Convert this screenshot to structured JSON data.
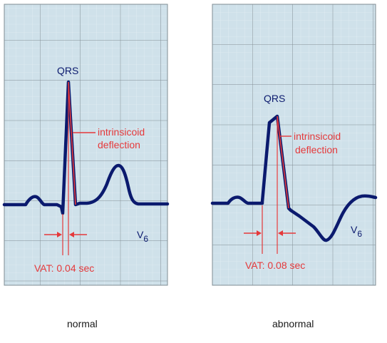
{
  "panels": [
    {
      "id": "normal",
      "qrs_label": "QRS",
      "deflection_line1": "intrinsicoid",
      "deflection_line2": "deflection",
      "lead": "V",
      "lead_subscript": "6",
      "vat_label": "VAT: 0.04 sec",
      "caption": "normal"
    },
    {
      "id": "abnormal",
      "qrs_label": "QRS",
      "deflection_line1": "intrinsicoid",
      "deflection_line2": "deflection",
      "lead": "V",
      "lead_subscript": "6",
      "vat_label": "VAT: 0.08 sec",
      "caption": "abnormal"
    }
  ],
  "colors": {
    "grid_bg": "#cfe1ea",
    "grid_minor": "#e6eff4",
    "grid_major": "#7f8c93",
    "trace": "#0b1a6e",
    "annotation": "#e5393b",
    "page_bg": "#ffffff"
  }
}
